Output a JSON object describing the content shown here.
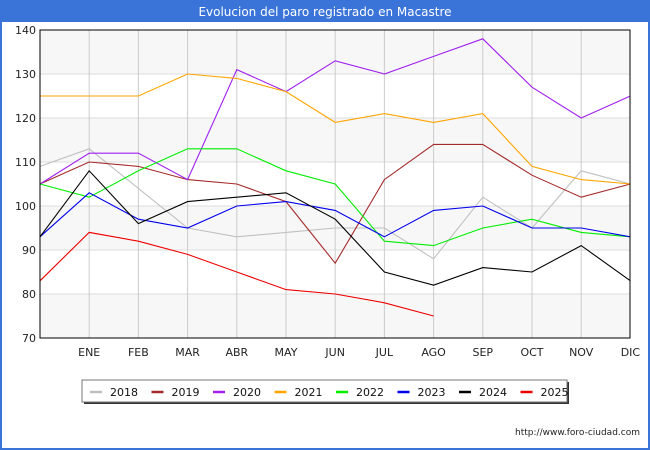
{
  "header": {
    "title": "Evolucion del paro registrado en Macastre"
  },
  "footer": {
    "credit": "http://www.foro-ciudad.com"
  },
  "chart_data": {
    "type": "line",
    "title": "Evolucion del paro registrado en Macastre",
    "xlabel": "",
    "ylabel": "",
    "ylim": [
      70,
      140
    ],
    "yticks": [
      70,
      80,
      90,
      100,
      110,
      120,
      130,
      140
    ],
    "categories": [
      "",
      "ENE",
      "FEB",
      "MAR",
      "ABR",
      "MAY",
      "JUN",
      "JUL",
      "AGO",
      "SEP",
      "OCT",
      "NOV",
      "DIC"
    ],
    "grid": true,
    "legend_position": "bottom-center",
    "series": [
      {
        "name": "2018",
        "color": "#c0c0c0",
        "values": [
          109,
          113,
          104,
          95,
          93,
          94,
          95,
          95,
          88,
          102,
          95,
          108,
          105
        ]
      },
      {
        "name": "2019",
        "color": "#a52a2a",
        "values": [
          105,
          110,
          109,
          106,
          105,
          101,
          87,
          106,
          114,
          114,
          107,
          102,
          105
        ]
      },
      {
        "name": "2020",
        "color": "#a020f0",
        "values": [
          105,
          112,
          112,
          106,
          131,
          126,
          133,
          130,
          134,
          138,
          127,
          120,
          125
        ]
      },
      {
        "name": "2021",
        "color": "#ffa500",
        "values": [
          125,
          125,
          125,
          130,
          129,
          126,
          119,
          121,
          119,
          121,
          109,
          106,
          105
        ]
      },
      {
        "name": "2022",
        "color": "#00ee00",
        "values": [
          105,
          102,
          108,
          113,
          113,
          108,
          105,
          92,
          91,
          95,
          97,
          94,
          93
        ]
      },
      {
        "name": "2023",
        "color": "#0000ee",
        "values": [
          93,
          103,
          97,
          95,
          100,
          101,
          99,
          93,
          99,
          100,
          95,
          95,
          93
        ]
      },
      {
        "name": "2024",
        "color": "#000000",
        "values": [
          93,
          108,
          96,
          101,
          102,
          103,
          97,
          85,
          82,
          86,
          85,
          91,
          83
        ]
      },
      {
        "name": "2025",
        "color": "#ee0000",
        "values": [
          83,
          94,
          92,
          89,
          85,
          81,
          80,
          78,
          75
        ]
      }
    ]
  }
}
